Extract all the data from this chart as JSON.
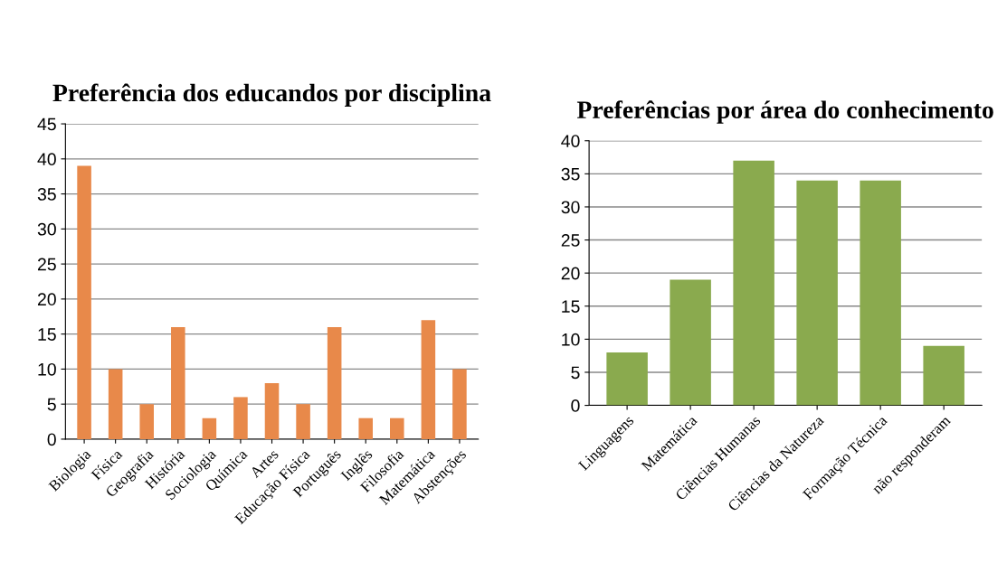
{
  "chart_data": [
    {
      "type": "bar",
      "title": "Preferência dos educandos por disciplina",
      "categories": [
        "Biologia",
        "Física",
        "Geografia",
        "História",
        "Sociologia",
        "Química",
        "Artes",
        "Educação Física",
        "Português",
        "Inglês",
        "Filosofia",
        "Matemática",
        "Abstenções"
      ],
      "values": [
        39,
        10,
        5,
        16,
        3,
        6,
        8,
        5,
        16,
        3,
        3,
        17,
        10
      ],
      "color": "#e8894a",
      "ylim": [
        0,
        45
      ],
      "yticks": [
        0,
        5,
        10,
        15,
        20,
        25,
        30,
        35,
        40,
        45
      ],
      "grid": "y"
    },
    {
      "type": "bar",
      "title": "Preferências por área do conhecimento",
      "categories": [
        "Linguagens",
        "Matemática",
        "Ciências Humanas",
        "Ciências da Natureza",
        "Formação Técnica",
        "não responderam"
      ],
      "values": [
        8,
        19,
        37,
        34,
        34,
        9
      ],
      "color": "#8aaa4e",
      "ylim": [
        0,
        40
      ],
      "yticks": [
        0,
        5,
        10,
        15,
        20,
        25,
        30,
        35,
        40
      ],
      "grid": "y"
    }
  ]
}
